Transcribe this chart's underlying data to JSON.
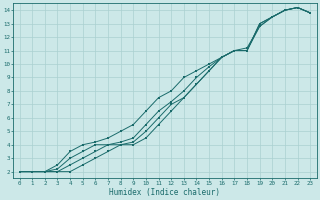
{
  "xlabel": "Humidex (Indice chaleur)",
  "background_color": "#cce8e8",
  "grid_color": "#aad0d0",
  "line_color": "#1a6b6b",
  "xlim": [
    -0.5,
    23.5
  ],
  "ylim": [
    1.5,
    14.5
  ],
  "xticks": [
    0,
    1,
    2,
    3,
    4,
    5,
    6,
    7,
    8,
    9,
    10,
    11,
    12,
    13,
    14,
    15,
    16,
    17,
    18,
    19,
    20,
    21,
    22,
    23
  ],
  "yticks": [
    2,
    3,
    4,
    5,
    6,
    7,
    8,
    9,
    10,
    11,
    12,
    13,
    14
  ],
  "lines": [
    [
      2.0,
      2.0,
      2.0,
      2.0,
      2.0,
      2.5,
      3.0,
      3.5,
      4.0,
      4.0,
      4.5,
      5.5,
      6.5,
      7.5,
      8.5,
      9.5,
      10.5,
      11.0,
      11.0,
      13.0,
      13.5,
      14.0,
      14.2,
      13.8
    ],
    [
      2.0,
      2.0,
      2.0,
      2.0,
      2.5,
      3.0,
      3.5,
      4.0,
      4.0,
      4.2,
      5.0,
      6.0,
      7.0,
      7.5,
      8.5,
      9.5,
      10.5,
      11.0,
      11.0,
      13.0,
      13.5,
      14.0,
      14.2,
      13.8
    ],
    [
      2.0,
      2.0,
      2.0,
      2.2,
      3.0,
      3.5,
      4.0,
      4.0,
      4.2,
      4.5,
      5.5,
      6.5,
      7.2,
      8.0,
      9.0,
      9.8,
      10.5,
      11.0,
      11.0,
      12.8,
      13.5,
      14.0,
      14.2,
      13.8
    ],
    [
      2.0,
      2.0,
      2.0,
      2.5,
      3.5,
      4.0,
      4.2,
      4.5,
      5.0,
      5.5,
      6.5,
      7.5,
      8.0,
      9.0,
      9.5,
      10.0,
      10.5,
      11.0,
      11.2,
      12.8,
      13.5,
      14.0,
      14.2,
      13.8
    ]
  ]
}
